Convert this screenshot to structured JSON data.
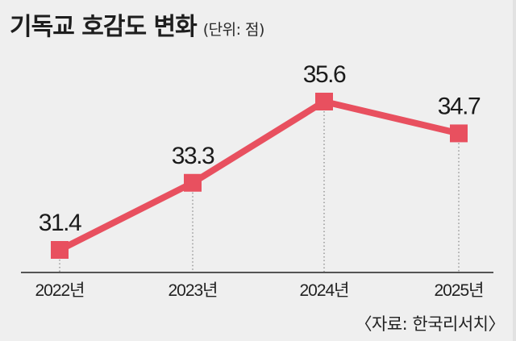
{
  "header": {
    "title": "기독교 호감도 변화",
    "unit": "(단위: 점)"
  },
  "source": "〈자료: 한국리서치〉",
  "colors": {
    "background": "#efefef",
    "series": "#e8505f",
    "text": "#1a1a1a",
    "axis": "#555555",
    "grid_dotted": "#888888"
  },
  "chart_data": {
    "type": "line",
    "title": "기독교 호감도 변화",
    "subtitle": "(단위: 점)",
    "xlabel": "",
    "ylabel": "",
    "categories": [
      "2022년",
      "2023년",
      "2024년",
      "2025년"
    ],
    "series": [
      {
        "name": "기독교 호감도",
        "values": [
          31.4,
          33.3,
          35.6,
          34.7
        ]
      }
    ],
    "value_labels": [
      "31.4",
      "33.3",
      "35.6",
      "34.7"
    ],
    "marker": "square",
    "grid": "dotted vertical drop lines",
    "legend": "none",
    "annotation": "〈자료: 한국리서치〉"
  }
}
